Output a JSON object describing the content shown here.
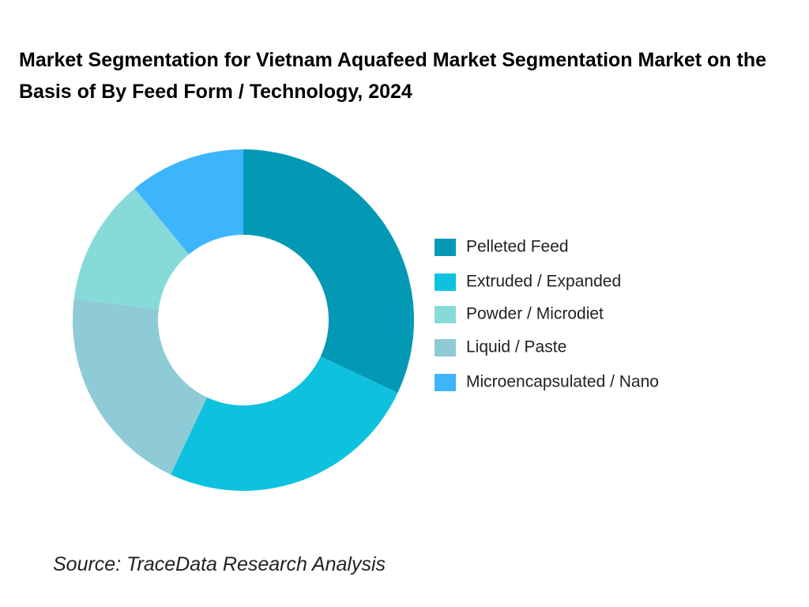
{
  "chart_data": {
    "type": "donut",
    "title": "Market Segmentation for Vietnam Aquafeed Market Segmentation Market on the Basis of By Feed Form / Technology, 2024",
    "categories": [
      "Pelleted Feed",
      "Extruded / Expanded",
      "Liquid / Paste",
      "Powder / Microdiet",
      "Microencapsulated / Nano"
    ],
    "values": [
      32,
      25,
      20,
      12,
      11
    ],
    "colors": [
      "#0399b4",
      "#0ec1df",
      "#8ecbd6",
      "#86dbd8",
      "#3db5fc"
    ],
    "source": "Source: TraceData Research Analysis"
  }
}
